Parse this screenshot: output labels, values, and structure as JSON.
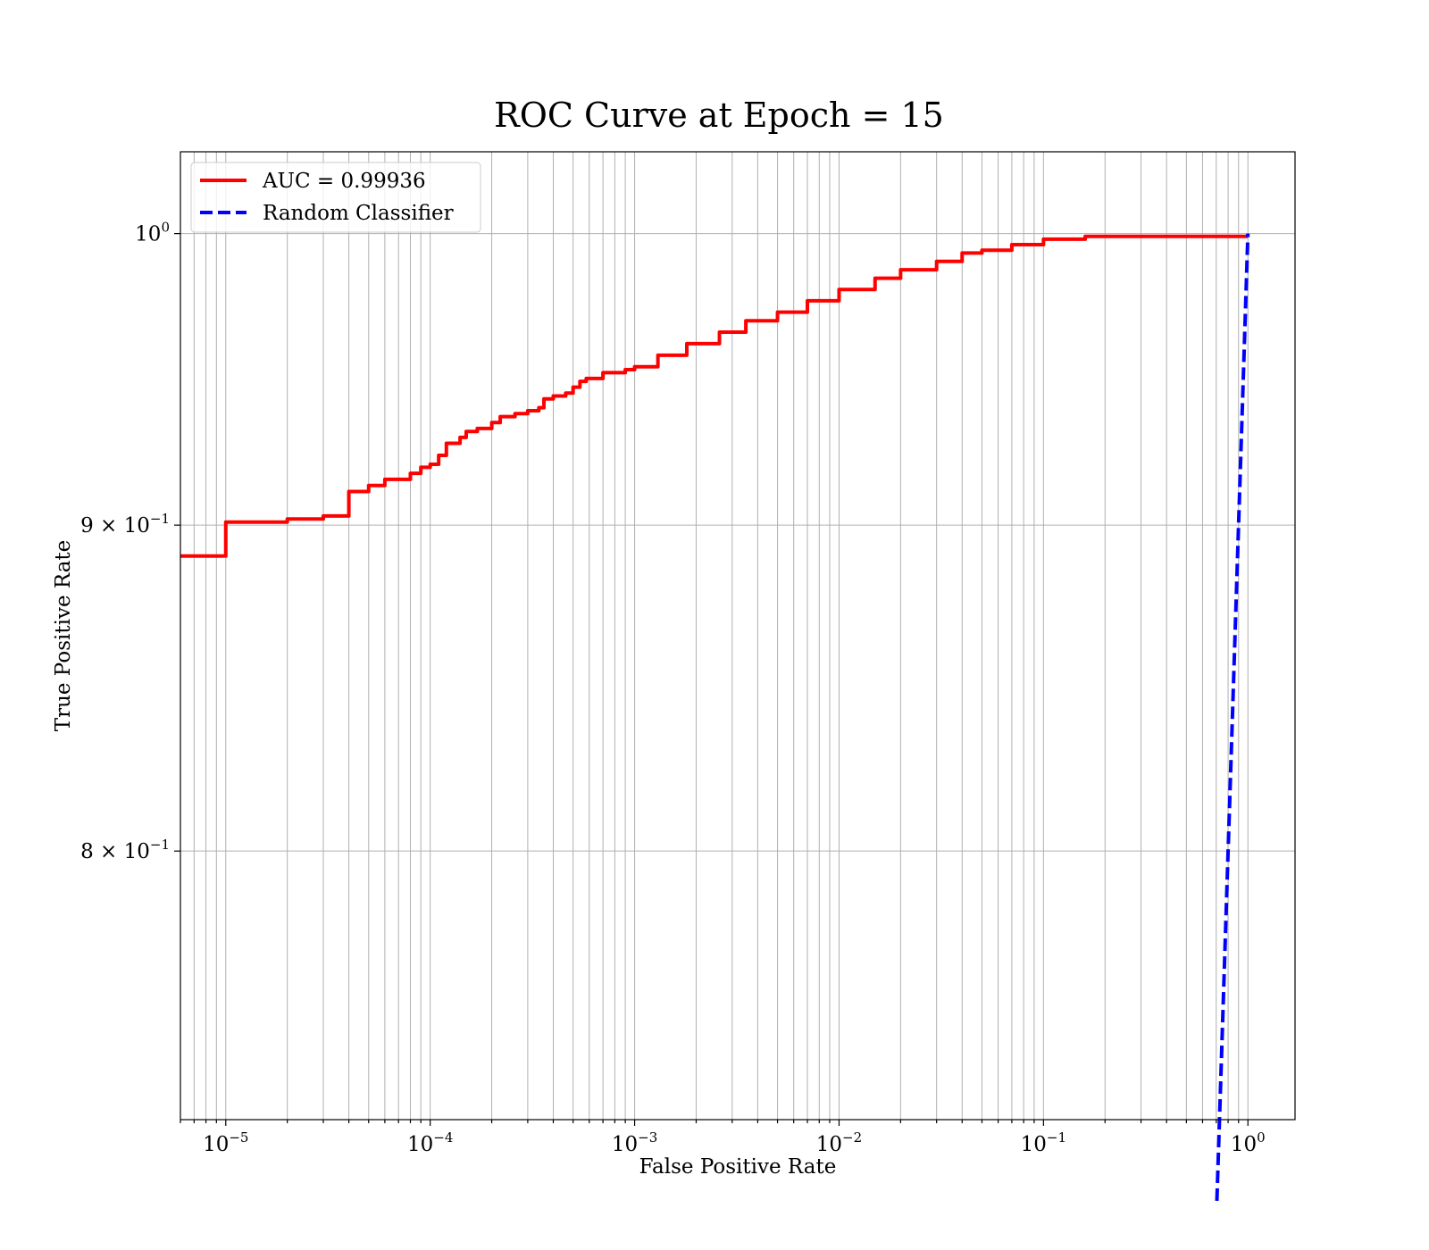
{
  "chart_data": {
    "type": "line",
    "title": "ROC Curve at Epoch = 15",
    "xlabel": "False Positive Rate",
    "ylabel": "True Positive Rate",
    "xscale": "log",
    "yscale": "log",
    "xlim": [
      6e-06,
      1.7
    ],
    "ylim": [
      0.726,
      1.03
    ],
    "grid": true,
    "grid_minor": true,
    "legend_position": "top-left",
    "x_ticks": [
      {
        "value": 1e-05,
        "base": "10",
        "exp": "−5"
      },
      {
        "value": 0.0001,
        "base": "10",
        "exp": "−4"
      },
      {
        "value": 0.001,
        "base": "10",
        "exp": "−3"
      },
      {
        "value": 0.01,
        "base": "10",
        "exp": "−2"
      },
      {
        "value": 0.1,
        "base": "10",
        "exp": "−1"
      },
      {
        "value": 1,
        "base": "10",
        "exp": "0"
      }
    ],
    "y_ticks": [
      {
        "value": 1.0,
        "base": "10",
        "exp": "0"
      },
      {
        "value": 0.9,
        "base": "9 × 10",
        "exp": "−1"
      },
      {
        "value": 0.8,
        "base": "8 × 10",
        "exp": "−1"
      }
    ],
    "series": [
      {
        "name": "AUC = 0.99936",
        "color": "#ff0000",
        "style": "solid",
        "step": true,
        "x": [
          6e-06,
          1e-05,
          2e-05,
          3e-05,
          4e-05,
          5e-05,
          6e-05,
          8e-05,
          9e-05,
          0.0001,
          0.00011,
          0.00012,
          0.00014,
          0.00015,
          0.00017,
          0.0002,
          0.00022,
          0.00026,
          0.0003,
          0.00034,
          0.00036,
          0.0004,
          0.00046,
          0.0005,
          0.00054,
          0.00058,
          0.0007,
          0.0009,
          0.001,
          0.0013,
          0.0018,
          0.0026,
          0.0035,
          0.005,
          0.007,
          0.01,
          0.015,
          0.02,
          0.03,
          0.04,
          0.05,
          0.07,
          0.1,
          0.16,
          1.0
        ],
        "y": [
          0.89,
          0.901,
          0.902,
          0.903,
          0.911,
          0.913,
          0.915,
          0.917,
          0.919,
          0.92,
          0.923,
          0.927,
          0.929,
          0.931,
          0.932,
          0.934,
          0.936,
          0.937,
          0.938,
          0.939,
          0.942,
          0.943,
          0.944,
          0.946,
          0.948,
          0.949,
          0.951,
          0.952,
          0.953,
          0.957,
          0.961,
          0.965,
          0.969,
          0.972,
          0.976,
          0.98,
          0.984,
          0.987,
          0.99,
          0.993,
          0.994,
          0.996,
          0.998,
          0.999,
          0.999
        ]
      },
      {
        "name": "Random Classifier",
        "color": "#0000ff",
        "style": "dashed",
        "step": false,
        "x": [
          0.705,
          1.0
        ],
        "y": [
          0.705,
          1.0
        ]
      }
    ]
  }
}
